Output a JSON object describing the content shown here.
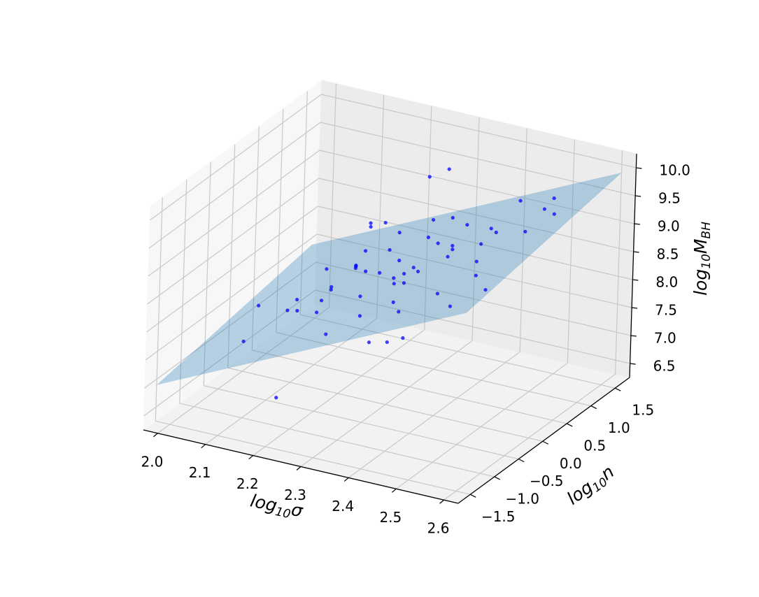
{
  "chart_data": {
    "type": "scatter3d",
    "xlabel": [
      "log",
      "10",
      "σ"
    ],
    "ylabel": [
      "log",
      "10",
      "n"
    ],
    "zlabel": [
      "log",
      "10",
      "M",
      "BH"
    ],
    "xlim": [
      1.97,
      2.63
    ],
    "ylim": [
      -1.75,
      1.8
    ],
    "zlim": [
      6.25,
      10.25
    ],
    "xticks": [
      {
        "value": 2,
        "label": "2.0"
      },
      2.1,
      2.2,
      2.3,
      2.4,
      2.5,
      2.6
    ],
    "yticks": [
      {
        "value": -1.5,
        "label": "−1.5"
      },
      {
        "value": -1,
        "label": "−1.0"
      },
      {
        "value": -0.5,
        "label": "−0.5"
      },
      {
        "value": 0,
        "label": "0.0"
      },
      0.5,
      {
        "value": 1,
        "label": "1.0"
      },
      1.5
    ],
    "zticks": [
      6.5,
      {
        "value": 7,
        "label": "7.0"
      },
      7.5,
      {
        "value": 8,
        "label": "8.0"
      },
      8.5,
      {
        "value": 9,
        "label": "9.0"
      },
      9.5,
      {
        "value": 10,
        "label": "10.0"
      }
    ],
    "grid": true,
    "points": {
      "color": "#0000ff",
      "x": [
        2.2,
        2.22,
        2.25,
        2.18,
        2.3,
        2.28,
        2.32,
        2.35,
        2.24,
        2.27,
        2.21,
        2.19,
        2.33,
        2.36,
        2.38,
        2.4,
        2.42,
        2.29,
        2.26,
        2.23,
        2.31,
        2.34,
        2.16,
        2.14,
        2.17,
        2.44,
        2.46,
        2.48,
        2.5,
        2.52,
        2.55,
        2.58,
        2.6,
        2.12,
        2.1,
        2.08,
        2.05,
        2.02,
        2.25,
        2.3,
        2.37,
        2.45,
        2.2,
        2.28,
        2.35,
        2.53,
        2.47,
        2.39,
        2.41,
        2.22,
        2.26,
        2.33,
        2.19,
        2.43,
        2.31,
        2.15,
        2.56,
        2.49,
        2.27,
        2.36
      ],
      "y": [
        0.3,
        0.1,
        0.5,
        -0.2,
        0.2,
        -0.4,
        0.6,
        0.0,
        0.8,
        0.4,
        -0.6,
        0.6,
        -0.2,
        0.4,
        -0.5,
        0.3,
        0.1,
        1.0,
        -0.9,
        0.0,
        -0.7,
        0.9,
        0.2,
        -0.3,
        0.9,
        -0.2,
        0.5,
        -0.8,
        0.2,
        -0.4,
        0.7,
        0.0,
        0.4,
        0.5,
        -0.1,
        0.3,
        -0.5,
        0.1,
        1.3,
        1.2,
        -1.1,
        -1.2,
        -1.3,
        0.2,
        0.8,
        1.1,
        1.0,
        0.7,
        -0.9,
        0.7,
        0.2,
        0.3,
        -0.1,
        0.6,
        0.0,
        1.1,
        -0.6,
        -0.1,
        -0.2,
        -0.3
      ],
      "z": [
        8.3,
        8.5,
        8.6,
        8.0,
        8.7,
        8.4,
        8.9,
        8.8,
        8.7,
        8.2,
        8.1,
        8.4,
        8.6,
        9.0,
        8.9,
        9.1,
        9.2,
        8.9,
        8.0,
        8.6,
        8.3,
        9.1,
        7.9,
        7.8,
        8.6,
        9.3,
        9.4,
        9.1,
        9.6,
        9.5,
        9.8,
        9.9,
        10.0,
        8.0,
        7.6,
        7.5,
        7.2,
        7.4,
        9.4,
        9.7,
        8.2,
        8.5,
        7.0,
        7.2,
        7.6,
        9.7,
        9.6,
        9.2,
        8.7,
        8.9,
        8.4,
        8.5,
        8.2,
        9.0,
        8.1,
        8.5,
        9.2,
        9.0,
        8.7,
        8.9
      ]
    },
    "plane": {
      "color": "#1f77b4",
      "x": [
        1.98,
        2.62,
        2.62,
        1.98
      ],
      "y": [
        -1.6,
        -1.6,
        1.6,
        1.6
      ],
      "z": [
        6.98,
        9.54,
        10.02,
        7.46
      ]
    }
  }
}
